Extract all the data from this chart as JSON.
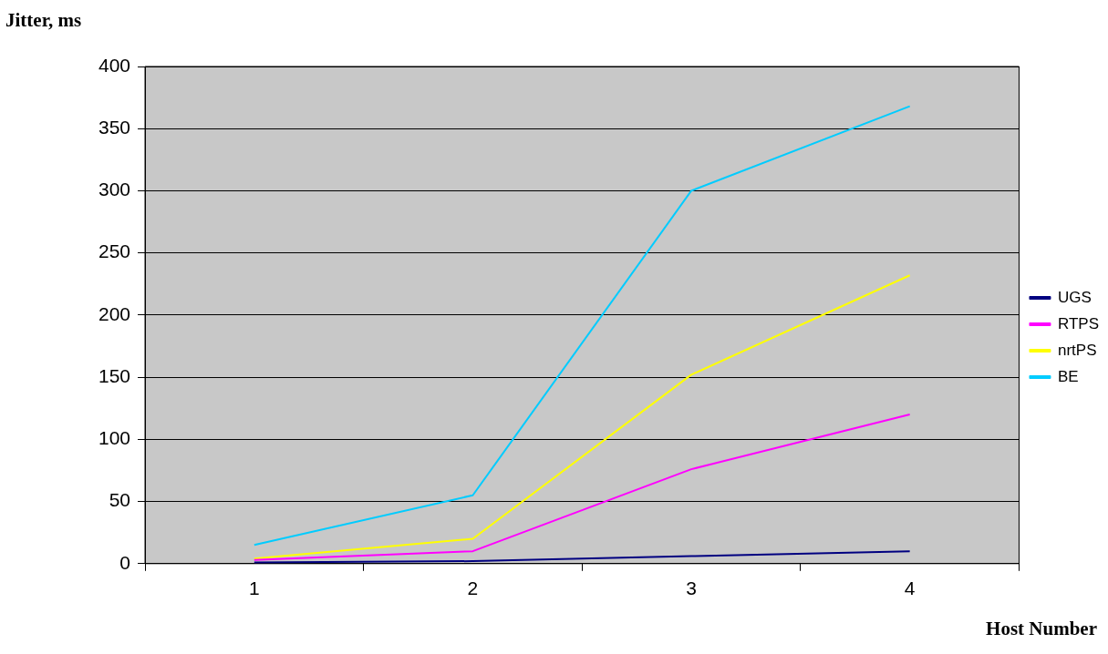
{
  "chart_data": {
    "type": "line",
    "ylabel": "Jitter, ms",
    "xlabel": "Host Number",
    "categories": [
      "1",
      "2",
      "3",
      "4"
    ],
    "series": [
      {
        "name": "UGS",
        "color": "#000080",
        "values": [
          1,
          2,
          6,
          10
        ]
      },
      {
        "name": "RTPS",
        "color": "#ff00ff",
        "values": [
          3,
          10,
          76,
          120
        ]
      },
      {
        "name": "nrtPS",
        "color": "#ffff00",
        "values": [
          4,
          20,
          152,
          232
        ]
      },
      {
        "name": "BE",
        "color": "#00ccff",
        "values": [
          15,
          55,
          300,
          368
        ]
      }
    ],
    "ylim": [
      0,
      400
    ],
    "yticks": [
      0,
      50,
      100,
      150,
      200,
      250,
      300,
      350,
      400
    ],
    "grid": "y",
    "legend": "right",
    "marker": "none",
    "line_style": "solid"
  }
}
